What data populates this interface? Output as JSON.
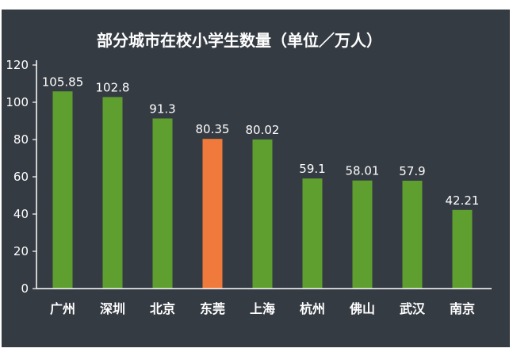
{
  "chart_data": {
    "type": "bar",
    "title": "部分城市在校小学生数量（单位／万人）",
    "categories": [
      "广州",
      "深圳",
      "北京",
      "东莞",
      "上海",
      "杭州",
      "佛山",
      "武汉",
      "南京"
    ],
    "values": [
      105.85,
      102.8,
      91.3,
      80.35,
      80.02,
      59.1,
      58.01,
      57.9,
      42.21
    ],
    "value_labels": [
      "105.85",
      "102.8",
      "91.3",
      "80.35",
      "80.02",
      "59.1",
      "58.01",
      "57.9",
      "42.21"
    ],
    "highlight_index": 3,
    "ylim": [
      0,
      120
    ],
    "yticks": [
      0,
      20,
      40,
      60,
      80,
      100,
      120
    ],
    "xlabel": "",
    "ylabel": "",
    "grid": false,
    "colors": {
      "bar": "#5f9f2f",
      "highlight": "#ef7a3b",
      "background": "#353b43",
      "axis": "#ffffff",
      "text": "#ffffff"
    }
  }
}
